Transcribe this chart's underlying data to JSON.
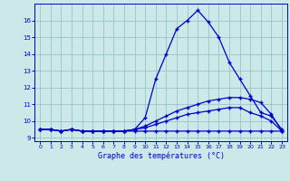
{
  "xlabel": "Graphe des températures (°C)",
  "bg_color": "#cce8e8",
  "grid_color": "#99cccc",
  "line_color": "#0000cc",
  "xlim": [
    -0.5,
    23.5
  ],
  "ylim": [
    8.8,
    17.0
  ],
  "yticks": [
    9,
    10,
    11,
    12,
    13,
    14,
    15,
    16
  ],
  "xticks": [
    0,
    1,
    2,
    3,
    4,
    5,
    6,
    7,
    8,
    9,
    10,
    11,
    12,
    13,
    14,
    15,
    16,
    17,
    18,
    19,
    20,
    21,
    22,
    23
  ],
  "curve1_x": [
    0,
    1,
    2,
    3,
    4,
    5,
    6,
    7,
    8,
    9,
    10,
    11,
    12,
    13,
    14,
    15,
    16,
    17,
    18,
    19,
    20,
    21,
    22,
    23
  ],
  "curve1_y": [
    9.5,
    9.5,
    9.4,
    9.5,
    9.4,
    9.4,
    9.4,
    9.4,
    9.4,
    9.5,
    10.2,
    12.5,
    14.0,
    15.5,
    16.0,
    16.6,
    15.9,
    15.0,
    13.5,
    12.5,
    11.5,
    10.5,
    10.3,
    9.5
  ],
  "curve2_x": [
    0,
    1,
    2,
    3,
    4,
    5,
    6,
    7,
    8,
    9,
    10,
    11,
    12,
    13,
    14,
    15,
    16,
    17,
    18,
    19,
    20,
    21,
    22,
    23
  ],
  "curve2_y": [
    9.5,
    9.5,
    9.4,
    9.5,
    9.4,
    9.4,
    9.4,
    9.4,
    9.4,
    9.5,
    9.7,
    10.0,
    10.3,
    10.6,
    10.8,
    11.0,
    11.2,
    11.3,
    11.4,
    11.4,
    11.3,
    11.1,
    10.4,
    9.4
  ],
  "curve3_x": [
    0,
    1,
    2,
    3,
    4,
    5,
    6,
    7,
    8,
    9,
    10,
    11,
    12,
    13,
    14,
    15,
    16,
    17,
    18,
    19,
    20,
    21,
    22,
    23
  ],
  "curve3_y": [
    9.5,
    9.5,
    9.4,
    9.5,
    9.4,
    9.4,
    9.4,
    9.4,
    9.4,
    9.5,
    9.6,
    9.8,
    10.0,
    10.2,
    10.4,
    10.5,
    10.6,
    10.7,
    10.8,
    10.8,
    10.5,
    10.3,
    10.0,
    9.4
  ],
  "curve4_x": [
    0,
    1,
    2,
    3,
    4,
    5,
    6,
    7,
    8,
    9,
    10,
    11,
    12,
    13,
    14,
    15,
    16,
    17,
    18,
    19,
    20,
    21,
    22,
    23
  ],
  "curve4_y": [
    9.5,
    9.5,
    9.4,
    9.5,
    9.4,
    9.4,
    9.4,
    9.4,
    9.4,
    9.4,
    9.4,
    9.4,
    9.4,
    9.4,
    9.4,
    9.4,
    9.4,
    9.4,
    9.4,
    9.4,
    9.4,
    9.4,
    9.4,
    9.4
  ]
}
